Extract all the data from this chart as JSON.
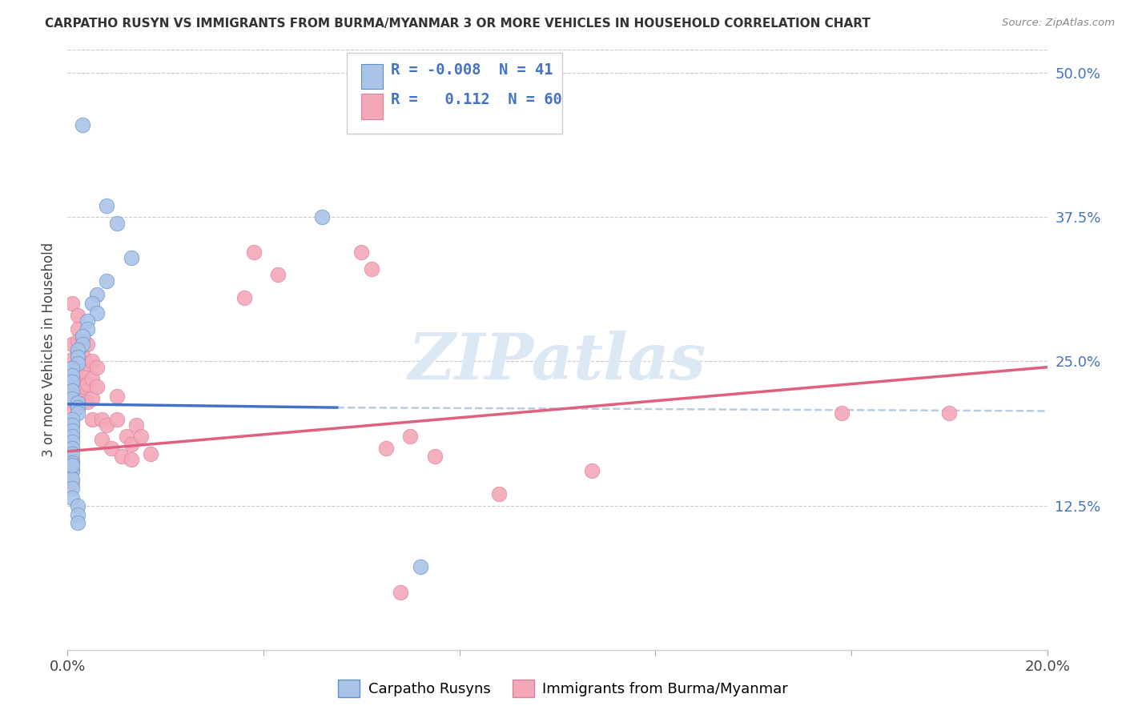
{
  "title": "CARPATHO RUSYN VS IMMIGRANTS FROM BURMA/MYANMAR 3 OR MORE VEHICLES IN HOUSEHOLD CORRELATION CHART",
  "source": "Source: ZipAtlas.com",
  "ylabel": "3 or more Vehicles in Household",
  "ytick_labels": [
    "12.5%",
    "25.0%",
    "37.5%",
    "50.0%"
  ],
  "ytick_values": [
    0.125,
    0.25,
    0.375,
    0.5
  ],
  "xlim": [
    0.0,
    0.2
  ],
  "ylim": [
    0.0,
    0.52
  ],
  "legend_r_blue": "-0.008",
  "legend_n_blue": "41",
  "legend_r_pink": "0.112",
  "legend_n_pink": "60",
  "blue_color": "#aac4e8",
  "pink_color": "#f4a8b8",
  "blue_line_color": "#4472C4",
  "pink_line_color": "#E06080",
  "dashed_line_color": "#b8cce4",
  "watermark_color": "#dde8f5",
  "blue_scatter": [
    [
      0.003,
      0.455
    ],
    [
      0.008,
      0.385
    ],
    [
      0.01,
      0.37
    ],
    [
      0.013,
      0.34
    ],
    [
      0.008,
      0.32
    ],
    [
      0.006,
      0.308
    ],
    [
      0.005,
      0.3
    ],
    [
      0.006,
      0.292
    ],
    [
      0.004,
      0.285
    ],
    [
      0.004,
      0.278
    ],
    [
      0.003,
      0.272
    ],
    [
      0.003,
      0.265
    ],
    [
      0.002,
      0.26
    ],
    [
      0.002,
      0.254
    ],
    [
      0.002,
      0.248
    ],
    [
      0.001,
      0.244
    ],
    [
      0.001,
      0.238
    ],
    [
      0.001,
      0.232
    ],
    [
      0.001,
      0.225
    ],
    [
      0.001,
      0.218
    ],
    [
      0.002,
      0.214
    ],
    [
      0.002,
      0.21
    ],
    [
      0.002,
      0.205
    ],
    [
      0.001,
      0.2
    ],
    [
      0.001,
      0.195
    ],
    [
      0.001,
      0.19
    ],
    [
      0.001,
      0.185
    ],
    [
      0.001,
      0.18
    ],
    [
      0.001,
      0.175
    ],
    [
      0.001,
      0.17
    ],
    [
      0.001,
      0.162
    ],
    [
      0.001,
      0.155
    ],
    [
      0.001,
      0.148
    ],
    [
      0.001,
      0.14
    ],
    [
      0.001,
      0.132
    ],
    [
      0.002,
      0.125
    ],
    [
      0.002,
      0.117
    ],
    [
      0.002,
      0.11
    ],
    [
      0.052,
      0.375
    ],
    [
      0.072,
      0.072
    ],
    [
      0.001,
      0.16
    ]
  ],
  "pink_scatter": [
    [
      0.001,
      0.3
    ],
    [
      0.001,
      0.265
    ],
    [
      0.001,
      0.252
    ],
    [
      0.001,
      0.238
    ],
    [
      0.001,
      0.225
    ],
    [
      0.001,
      0.215
    ],
    [
      0.001,
      0.205
    ],
    [
      0.001,
      0.196
    ],
    [
      0.001,
      0.185
    ],
    [
      0.001,
      0.175
    ],
    [
      0.001,
      0.165
    ],
    [
      0.001,
      0.155
    ],
    [
      0.001,
      0.145
    ],
    [
      0.002,
      0.29
    ],
    [
      0.002,
      0.278
    ],
    [
      0.002,
      0.268
    ],
    [
      0.002,
      0.258
    ],
    [
      0.002,
      0.245
    ],
    [
      0.002,
      0.235
    ],
    [
      0.002,
      0.222
    ],
    [
      0.003,
      0.27
    ],
    [
      0.003,
      0.255
    ],
    [
      0.003,
      0.242
    ],
    [
      0.003,
      0.228
    ],
    [
      0.004,
      0.265
    ],
    [
      0.004,
      0.248
    ],
    [
      0.004,
      0.23
    ],
    [
      0.004,
      0.215
    ],
    [
      0.005,
      0.25
    ],
    [
      0.005,
      0.235
    ],
    [
      0.005,
      0.218
    ],
    [
      0.005,
      0.2
    ],
    [
      0.006,
      0.245
    ],
    [
      0.006,
      0.228
    ],
    [
      0.007,
      0.2
    ],
    [
      0.007,
      0.182
    ],
    [
      0.008,
      0.195
    ],
    [
      0.009,
      0.175
    ],
    [
      0.01,
      0.22
    ],
    [
      0.01,
      0.2
    ],
    [
      0.011,
      0.168
    ],
    [
      0.012,
      0.185
    ],
    [
      0.013,
      0.178
    ],
    [
      0.013,
      0.165
    ],
    [
      0.014,
      0.195
    ],
    [
      0.015,
      0.185
    ],
    [
      0.017,
      0.17
    ],
    [
      0.036,
      0.305
    ],
    [
      0.038,
      0.345
    ],
    [
      0.043,
      0.325
    ],
    [
      0.06,
      0.345
    ],
    [
      0.062,
      0.33
    ],
    [
      0.065,
      0.175
    ],
    [
      0.068,
      0.05
    ],
    [
      0.07,
      0.185
    ],
    [
      0.075,
      0.168
    ],
    [
      0.088,
      0.135
    ],
    [
      0.107,
      0.155
    ],
    [
      0.158,
      0.205
    ],
    [
      0.18,
      0.205
    ]
  ]
}
